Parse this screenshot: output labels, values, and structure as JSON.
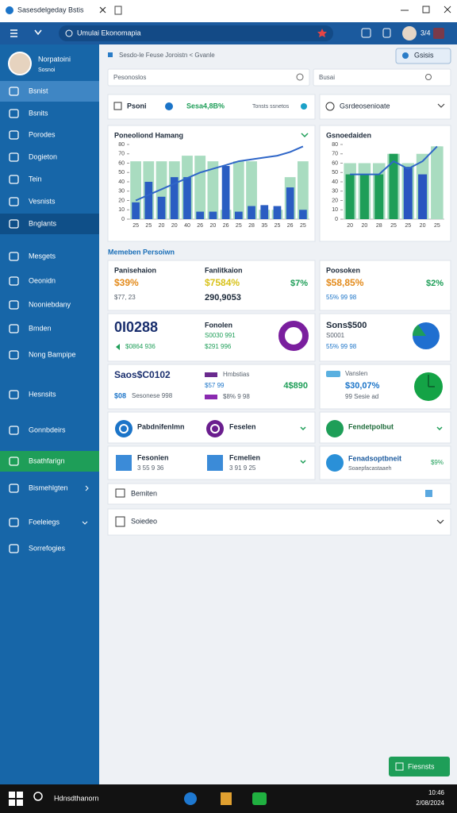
{
  "window": {
    "title": "Sasesdelgeday Bstis"
  },
  "browser": {
    "address": "Umulai Ekonomapia",
    "zoom": "3/4"
  },
  "sidebar": {
    "user_name": "Norpatoini",
    "user_role": "Sosnoi",
    "items": [
      "Bsnist",
      "Bsnits",
      "Porodes",
      "Dogieton",
      "Tein",
      "Vesnists",
      "Bnglants",
      "Mesgets",
      "Oeonidn",
      "Nooniebdany",
      "Bmden",
      "Nong Bampipe",
      "Hesnsits",
      "Gonnbdeirs",
      "Bsathfarign",
      "Bismehlgten",
      "Foeleiegs",
      "Sorrefogies"
    ]
  },
  "breadcrumb": "Sesdo-le Feuse Joroistn < Gvanle",
  "header_button": "Gsisis",
  "search": {
    "left": "Pesonoslos",
    "right": "Busai"
  },
  "summary": {
    "label": "Psoni",
    "value": "Sesa4,8B%",
    "note": "Tonsts ssnetos",
    "filter": "Gsrdeosenioate"
  },
  "charts": [
    {
      "type": "bar",
      "title": "Poneoliond Hamang",
      "categories": [
        "25",
        "25",
        "20",
        "20",
        "40",
        "26",
        "20",
        "26",
        "25",
        "28",
        "35",
        "25",
        "26",
        "25"
      ],
      "ylim": [
        0,
        80
      ],
      "yticks": [
        0,
        10,
        20,
        30,
        40,
        50,
        60,
        70,
        80
      ],
      "series": [
        {
          "kind": "bar",
          "color": "#a9dcc0",
          "values": [
            62,
            62,
            62,
            62,
            68,
            68,
            62,
            10,
            62,
            62,
            10,
            10,
            45,
            62
          ]
        },
        {
          "kind": "bar",
          "color": "#2a5dc2",
          "values": [
            18,
            40,
            24,
            45,
            45,
            8,
            8,
            57,
            8,
            14,
            15,
            14,
            34,
            10
          ]
        },
        {
          "kind": "line",
          "color": "#2f66c8",
          "values": [
            20,
            26,
            32,
            38,
            44,
            50,
            54,
            58,
            62,
            64,
            66,
            68,
            72,
            78
          ]
        }
      ]
    },
    {
      "type": "bar",
      "title": "Gsnoedaiden",
      "categories": [
        "20",
        "20",
        "28",
        "25",
        "25",
        "20",
        "25"
      ],
      "ylim": [
        0,
        80
      ],
      "yticks": [
        0,
        10,
        20,
        30,
        40,
        50,
        60,
        70,
        80
      ],
      "series": [
        {
          "kind": "bar",
          "color": "#a9dcc0",
          "values": [
            60,
            60,
            60,
            70,
            60,
            70,
            78
          ]
        },
        {
          "kind": "bar",
          "color": "#1e9e58",
          "colors": [
            "#1e9e58",
            "#1e9e58",
            "#1e9e58",
            "#1e9e58",
            "#2a55c0",
            "#2a55c0",
            "#a9dcc0"
          ],
          "values": [
            48,
            48,
            48,
            70,
            56,
            48,
            78
          ]
        },
        {
          "kind": "line",
          "color": "#2f66c8",
          "values": [
            48,
            48,
            48,
            62,
            54,
            62,
            78
          ]
        }
      ]
    }
  ],
  "section_title": "Memeben Persoiwn",
  "kpis": [
    {
      "title": "Panisehaion",
      "value": "$39%",
      "sub": "$77, 23"
    },
    {
      "title": "Fanlitkaion",
      "value": "$7584%",
      "sub": "290,9053",
      "delta": "$7%"
    },
    {
      "title": "Poosoken",
      "value": "$58,85%",
      "delta": "$2%",
      "sub": "55% 99 98"
    },
    {
      "value": "0I0288",
      "sub": "$0864 936"
    },
    {
      "title": "Fonolen",
      "value": "S0030 991",
      "sub": "$291 996"
    },
    {
      "title": "Sons$500",
      "value": "S0001",
      "sub": "55% 99 98"
    },
    {
      "value": "Saos$C0102",
      "sub": "$08",
      "note": "Sesonese 998"
    },
    {
      "title": "Hmbstias",
      "value": "$57 99",
      "sub": "$8% 9 98",
      "delta": "4$890"
    },
    {
      "title": "Vanslen",
      "value": "$30,07%",
      "sub": "99 Sesie ad"
    }
  ],
  "actions": [
    "Pabdnifenlmn",
    "Feselen",
    "Fendetpolbut"
  ],
  "reports": [
    {
      "title": "Fesonien",
      "sub": "3 55 9 36"
    },
    {
      "title": "Fcmelien",
      "sub": "3 91 9 25"
    },
    {
      "title": "Fenadsoptbneit",
      "sub": "Soaepfacastaaeh",
      "delta": "$9%"
    }
  ],
  "panels": [
    "Bemiten",
    "Soiedeo"
  ],
  "footer_button": "Fiesnsts",
  "taskbar": {
    "search": "Hdnsdthanorn",
    "time": "10:46",
    "date": "2/08/2024"
  }
}
